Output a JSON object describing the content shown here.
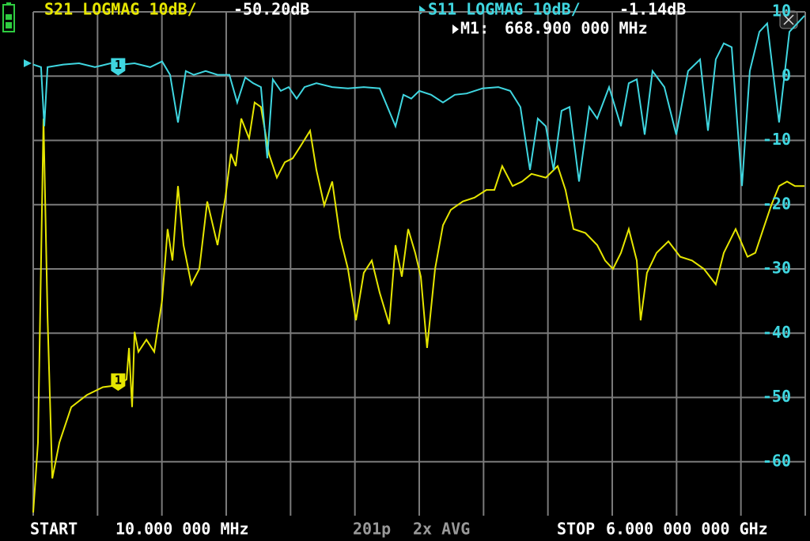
{
  "chart_data": {
    "type": "line",
    "ylim": [
      -70,
      10
    ],
    "yticks": [
      10,
      0,
      -10,
      -20,
      -30,
      -40,
      -50,
      -60
    ],
    "xlim": [
      {
        "value": 10,
        "label": "10.000 000 MHz"
      },
      {
        "value": 6000,
        "label": "6.000 000 000 GHz"
      }
    ],
    "start_text": "START",
    "stop_text": "STOP",
    "points_text": "201p",
    "avg_text": "2x AVG",
    "grid": true,
    "marker": {
      "name": "M1:",
      "x": 668.9,
      "x_label": "668.900 000 MHz",
      "flag": "1"
    },
    "series": [
      {
        "name": "S21 LOGMAG 10dB/",
        "color": "#e6e600",
        "reading": -50.2,
        "reading_label": "-50.20dB",
        "x": [
          10,
          47,
          90,
          121,
          158,
          213,
          305,
          427,
          550,
          661,
          734,
          753,
          777,
          796,
          826,
          888,
          949,
          1010,
          1053,
          1090,
          1133,
          1176,
          1237,
          1299,
          1360,
          1440,
          1501,
          1544,
          1581,
          1624,
          1685,
          1728,
          1777,
          1839,
          1900,
          1962,
          2023,
          2084,
          2158,
          2207,
          2268,
          2330,
          2391,
          2452,
          2514,
          2575,
          2637,
          2698,
          2772,
          2821,
          2870,
          2919,
          2974,
          3017,
          3066,
          3128,
          3189,
          3250,
          3343,
          3434,
          3526,
          3588,
          3649,
          3729,
          3803,
          3876,
          3987,
          4079,
          4140,
          4202,
          4294,
          4386,
          4447,
          4508,
          4570,
          4631,
          4693,
          4723,
          4772,
          4846,
          4938,
          5030,
          5122,
          5214,
          5306,
          5368,
          5460,
          5552,
          5613,
          5674,
          5736,
          5797,
          5859,
          5920,
          5994
        ],
        "values": [
          -67.9,
          -57.0,
          -6.6,
          -37.4,
          -62.6,
          -57.0,
          -51.5,
          -49.6,
          -48.4,
          -48.1,
          -47.2,
          -42.3,
          -51.5,
          -39.8,
          -42.9,
          -41.0,
          -42.9,
          -34.9,
          -23.8,
          -28.7,
          -17.1,
          -26.3,
          -32.4,
          -30.0,
          -19.5,
          -26.3,
          -18.9,
          -12.1,
          -14.0,
          -6.6,
          -9.7,
          -4.1,
          -4.8,
          -12.1,
          -15.8,
          -13.4,
          -12.8,
          -10.9,
          -8.5,
          -14.6,
          -20.1,
          -16.4,
          -25.1,
          -30.0,
          -38.0,
          -30.6,
          -28.7,
          -33.7,
          -38.6,
          -26.3,
          -31.2,
          -23.8,
          -27.5,
          -31.2,
          -42.3,
          -30.0,
          -23.2,
          -20.8,
          -19.5,
          -18.9,
          -17.7,
          -17.7,
          -14.0,
          -17.1,
          -16.4,
          -15.2,
          -15.8,
          -14.0,
          -17.7,
          -23.8,
          -24.4,
          -26.3,
          -28.7,
          -30.0,
          -27.5,
          -23.8,
          -28.7,
          -38.0,
          -30.6,
          -27.5,
          -25.7,
          -28.1,
          -28.7,
          -30.0,
          -32.4,
          -27.5,
          -23.8,
          -28.1,
          -27.5,
          -23.8,
          -20.1,
          -17.1,
          -16.4,
          -17.1,
          -17.1
        ]
      },
      {
        "name": "S11 LOGMAG 10dB/",
        "color": "#3fd6e0",
        "reading": -1.14,
        "reading_label": "-1.14dB",
        "x": [
          10,
          71,
          96,
          121,
          243,
          366,
          489,
          611,
          703,
          796,
          918,
          1010,
          1072,
          1133,
          1194,
          1256,
          1348,
          1440,
          1532,
          1593,
          1655,
          1716,
          1777,
          1826,
          1869,
          1931,
          1992,
          2054,
          2115,
          2207,
          2330,
          2452,
          2575,
          2698,
          2821,
          2882,
          2943,
          3005,
          3097,
          3189,
          3281,
          3373,
          3496,
          3619,
          3711,
          3790,
          3864,
          3925,
          3987,
          4048,
          4109,
          4171,
          4245,
          4324,
          4386,
          4478,
          4570,
          4631,
          4693,
          4754,
          4815,
          4907,
          4999,
          5091,
          5184,
          5245,
          5306,
          5368,
          5429,
          5509,
          5570,
          5644,
          5705,
          5797,
          5877,
          5994
        ],
        "values": [
          1.8,
          1.4,
          -7.8,
          1.4,
          1.8,
          2.0,
          1.4,
          2.0,
          1.8,
          2.0,
          1.4,
          2.3,
          0.2,
          -7.2,
          0.8,
          0.2,
          0.8,
          0.2,
          0.2,
          -4.1,
          -0.2,
          -1.1,
          -1.7,
          -12.8,
          -0.5,
          -2.3,
          -1.7,
          -3.5,
          -1.7,
          -1.1,
          -1.7,
          -1.9,
          -1.7,
          -1.9,
          -7.8,
          -2.9,
          -3.5,
          -2.3,
          -2.9,
          -4.1,
          -2.9,
          -2.7,
          -1.9,
          -1.7,
          -2.3,
          -4.8,
          -14.6,
          -6.6,
          -7.8,
          -14.6,
          -5.4,
          -4.8,
          -16.4,
          -4.8,
          -6.6,
          -1.7,
          -7.8,
          -1.1,
          -0.5,
          -9.1,
          0.8,
          -1.7,
          -9.1,
          0.8,
          2.6,
          -8.5,
          2.6,
          5.1,
          4.5,
          -17.1,
          0.8,
          6.9,
          8.2,
          -7.2,
          6.9,
          9.4
        ]
      }
    ]
  }
}
